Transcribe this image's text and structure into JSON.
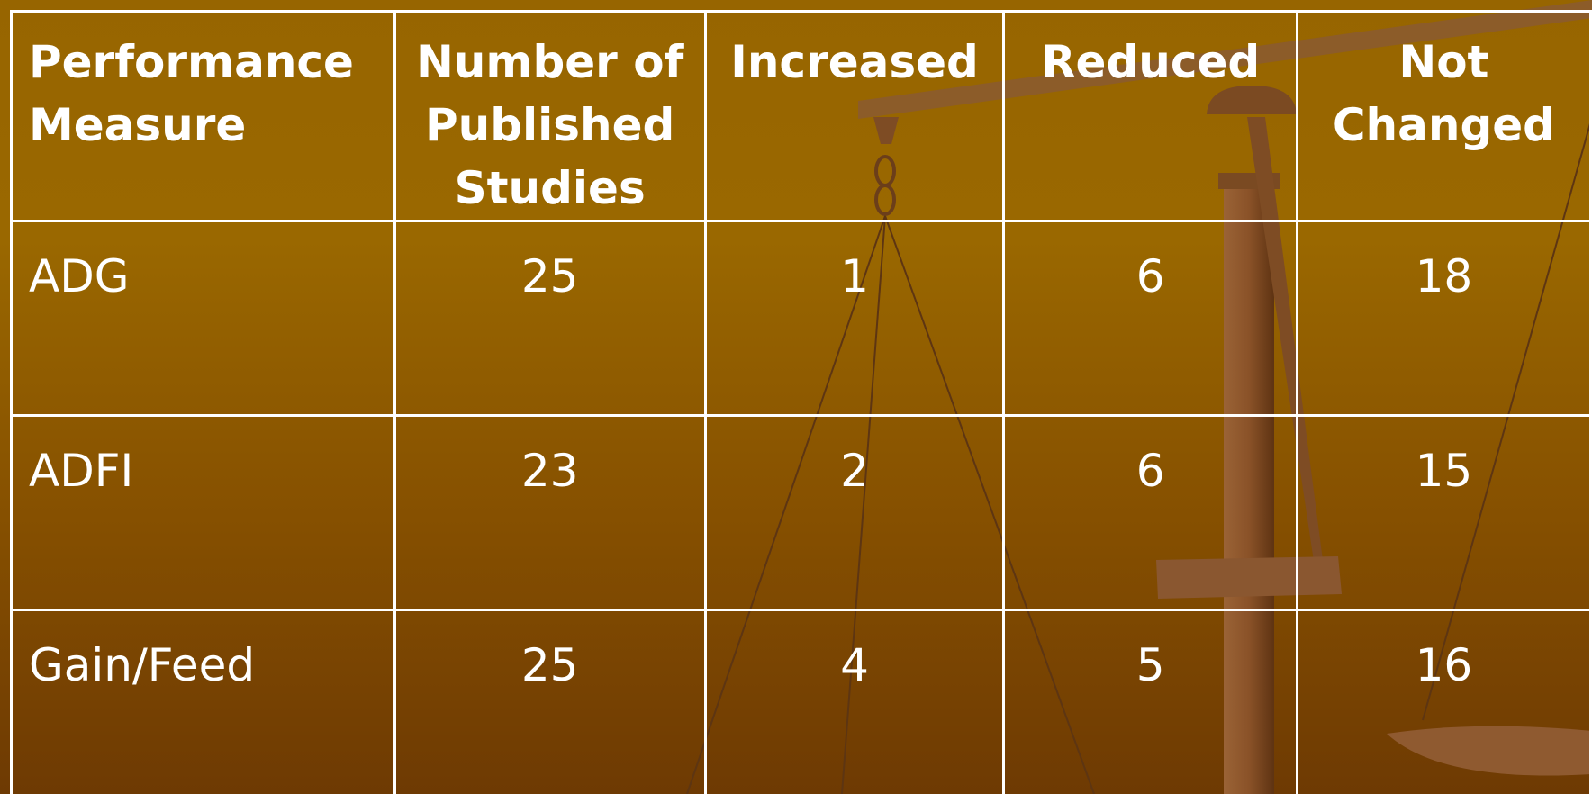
{
  "table": {
    "header": [
      "Performance Measure",
      "Number of Published Studies",
      "Increased",
      "Reduced",
      "Not Changed"
    ],
    "rows": [
      [
        "ADG",
        25,
        1,
        6,
        18
      ],
      [
        "ADFI",
        23,
        2,
        6,
        15
      ],
      [
        "Gain/Feed",
        25,
        4,
        5,
        16
      ]
    ]
  }
}
